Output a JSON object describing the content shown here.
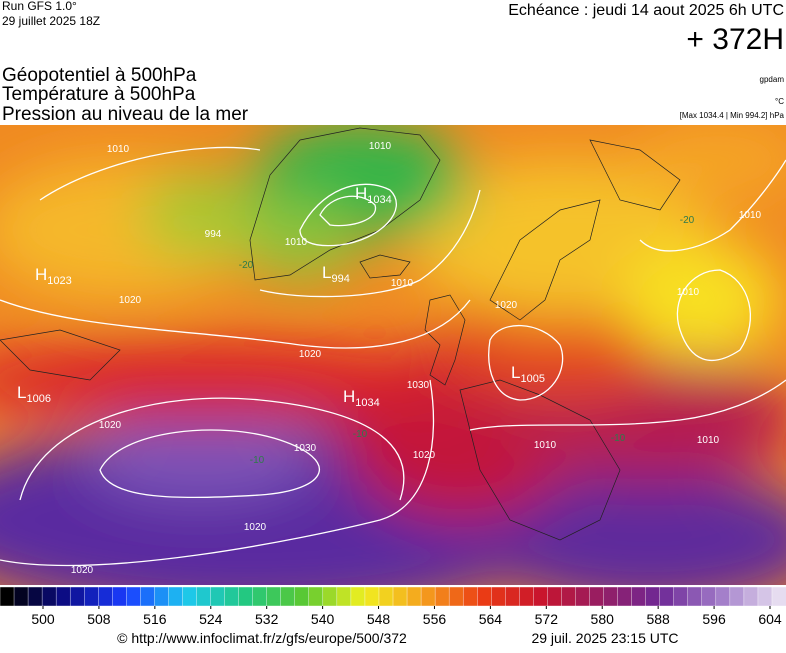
{
  "header": {
    "run": "Run GFS 1.0°",
    "run_date": "29 juillet 2025 18Z",
    "echeance": "Echéance : jeudi 14 aout 2025 6h UTC",
    "hour": "+ 372H"
  },
  "titles": [
    "Géopotentiel à 500hPa",
    "Température à 500hPa",
    "Pression au niveau de la mer"
  ],
  "notes": {
    "unit_geopotential": "gpdam",
    "unit_temperature": "°C",
    "pressure_range": "[Max 1034.4 | Min 994.2] hPa"
  },
  "pressure_centers": [
    {
      "letter": "H",
      "value": 1034
    },
    {
      "letter": "L",
      "value": 994
    },
    {
      "letter": "H",
      "value": 1023
    },
    {
      "letter": "L",
      "value": 1006
    },
    {
      "letter": "H",
      "value": 1034
    },
    {
      "letter": "L",
      "value": 1005
    }
  ],
  "isobar_labels": [
    994,
    1010,
    1010,
    1010,
    1010,
    1020,
    1020,
    1020,
    1030,
    1030,
    1020,
    1020,
    1020,
    1010,
    1010,
    1010,
    1010,
    1020
  ],
  "temperature_labels": [
    -20,
    -20,
    -10,
    -10,
    -10
  ],
  "colorbar": {
    "ticks": [
      500,
      508,
      516,
      524,
      532,
      540,
      548,
      556,
      564,
      572,
      580,
      588,
      596,
      604
    ]
  },
  "footer": {
    "url": "© http://www.infoclimat.fr/z/gfs/europe/500/372",
    "timestamp": "29 juil. 2025 23:15 UTC"
  }
}
